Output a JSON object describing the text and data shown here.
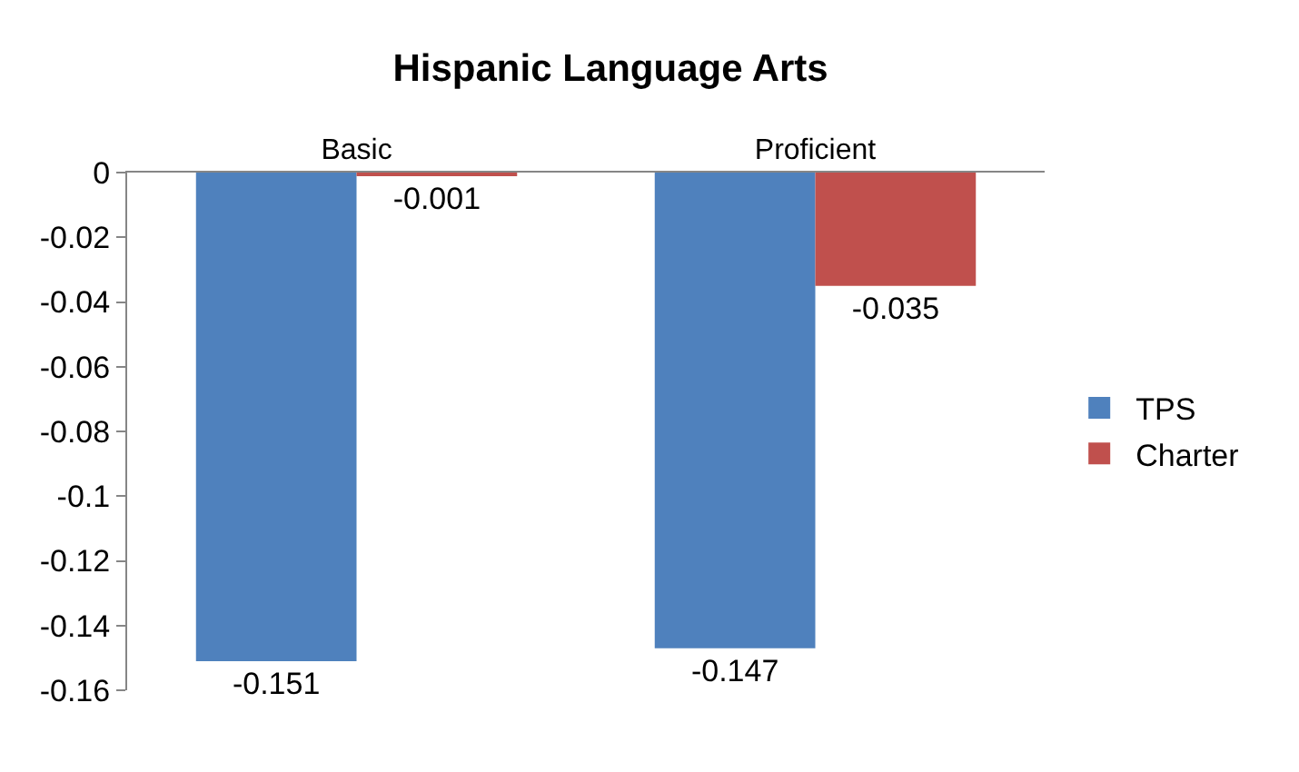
{
  "chart_data": {
    "type": "bar",
    "title": "Hispanic Language Arts",
    "categories": [
      "Basic",
      "Proficient"
    ],
    "series": [
      {
        "name": "TPS",
        "color": "#4f81bd",
        "values": [
          -0.151,
          -0.147
        ]
      },
      {
        "name": "Charter",
        "color": "#c0504d",
        "values": [
          -0.001,
          -0.035
        ]
      }
    ],
    "ylim": [
      -0.16,
      0
    ],
    "yticks": [
      0,
      -0.02,
      -0.04,
      -0.06,
      -0.08,
      -0.1,
      -0.12,
      -0.14,
      -0.16
    ],
    "legend": "right",
    "data_labels": true
  }
}
